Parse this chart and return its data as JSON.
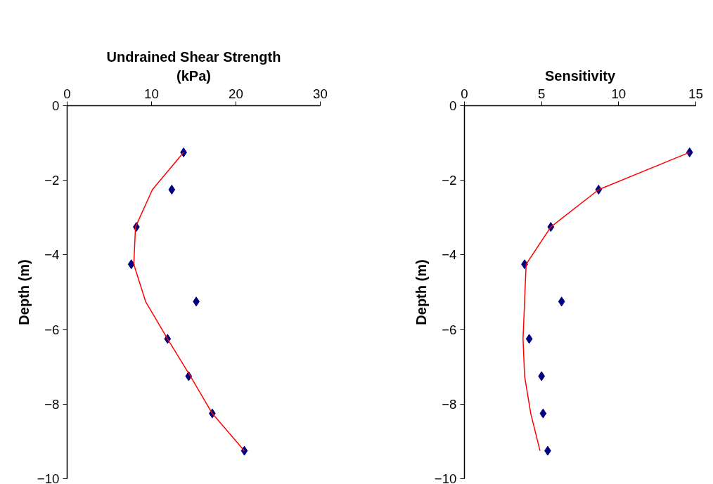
{
  "chart_data": [
    {
      "type": "scatter",
      "xlabel": "Undrained Shear Strength (kPa)",
      "ylabel": "Depth (m)",
      "xlim": [
        0,
        30
      ],
      "xticks": [
        0,
        10,
        20,
        30
      ],
      "ylim": [
        -10,
        0
      ],
      "yticks": [
        -10,
        -8,
        -6,
        -4,
        -2,
        0
      ],
      "grid": false,
      "series": [
        {
          "marker": "diamond",
          "color": "#000080",
          "x": [
            13.8,
            12.4,
            8.2,
            7.6,
            15.3,
            11.9,
            14.4,
            17.2,
            21.0
          ],
          "values": [
            -1.25,
            -2.25,
            -3.25,
            -4.25,
            -5.25,
            -6.25,
            -7.25,
            -8.25,
            -9.25
          ]
        },
        {
          "type": "line",
          "marker": "none",
          "line_style": "solid",
          "color": "#ff0000",
          "x": [
            13.8,
            10.1,
            8.1,
            7.9,
            9.3,
            11.9,
            14.6,
            17.2,
            21.0
          ],
          "values": [
            -1.25,
            -2.25,
            -3.25,
            -4.25,
            -5.25,
            -6.25,
            -7.25,
            -8.25,
            -9.25
          ]
        }
      ]
    },
    {
      "type": "scatter",
      "xlabel": "Sensitivity",
      "ylabel": "Depth (m)",
      "xlim": [
        0,
        15
      ],
      "xticks": [
        0,
        5,
        10,
        15
      ],
      "ylim": [
        -10,
        0
      ],
      "yticks": [
        -10,
        -8,
        -6,
        -4,
        -2,
        0
      ],
      "grid": false,
      "series": [
        {
          "marker": "diamond",
          "color": "#000080",
          "x": [
            14.6,
            8.7,
            5.6,
            3.9,
            6.3,
            4.2,
            5.0,
            5.1,
            5.4
          ],
          "values": [
            -1.25,
            -2.25,
            -3.25,
            -4.25,
            -5.25,
            -6.25,
            -7.25,
            -8.25,
            -9.25
          ]
        },
        {
          "type": "line",
          "marker": "none",
          "line_style": "solid",
          "color": "#ff0000",
          "x": [
            14.6,
            8.7,
            5.6,
            4.0,
            3.9,
            3.8,
            3.9,
            4.3,
            4.9
          ],
          "values": [
            -1.25,
            -2.25,
            -3.25,
            -4.25,
            -5.25,
            -6.25,
            -7.25,
            -8.25,
            -9.25
          ]
        }
      ]
    }
  ]
}
